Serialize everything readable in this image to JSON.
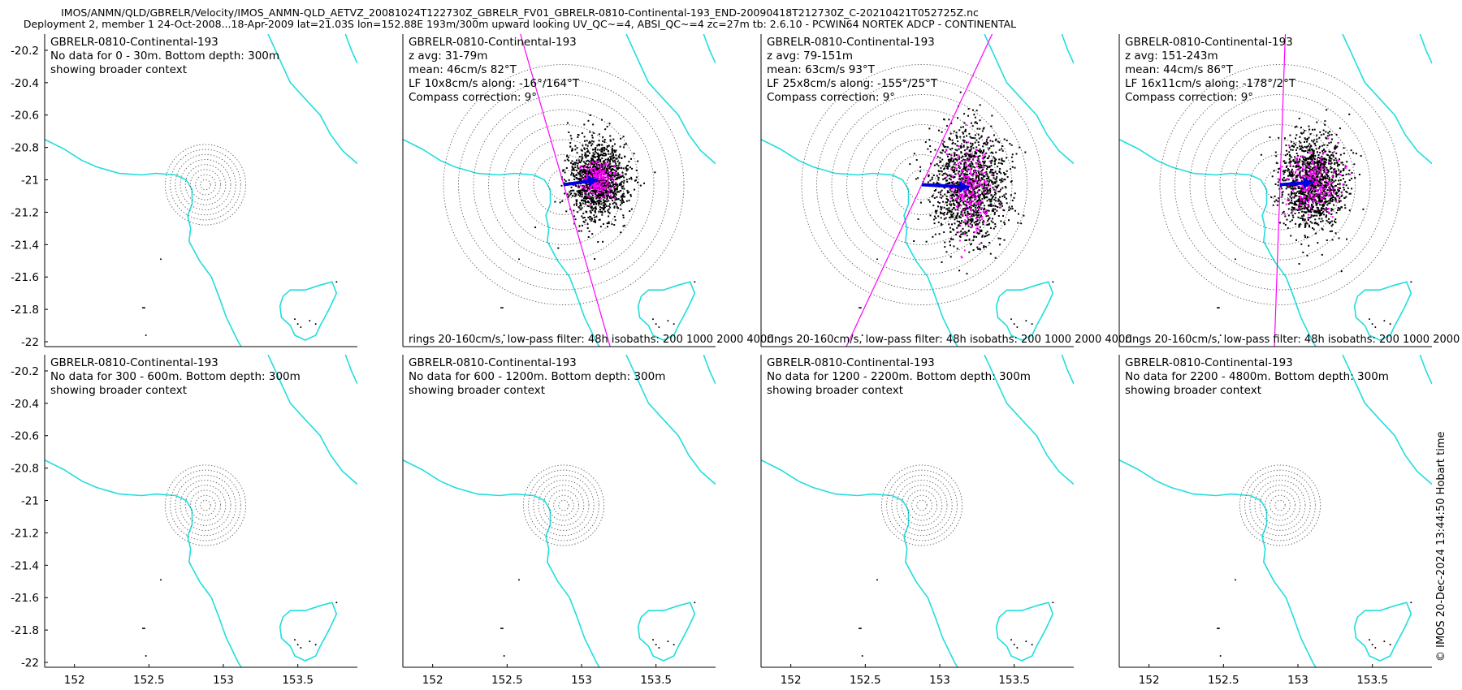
{
  "figure": {
    "title_line1": "IMOS/ANMN/QLD/GBRELR/Velocity/IMOS_ANMN-QLD_AETVZ_20081024T122730Z_GBRELR_FV01_GBRELR-0810-Continental-193_END-20090418T212730Z_C-20210421T052725Z.nc",
    "title_line2": "Deployment 2, member 1 24-Oct-2008...18-Apr-2009 lat=21.03S lon=152.88E 193m/300m upward looking UV_QC~=4, ABSI_QC~=4 zc=27m tb: 2.6.10 - PCWIN64 NORTEK ADCP - CONTINENTAL",
    "timestamp": "© IMOS 20-Dec-2024 13:44:50 Hobart time"
  },
  "colors": {
    "coast": "#22dddd",
    "arrow": "#0000dd",
    "lowpass": "#ff00ff",
    "points": "#000000",
    "rings": "#555555"
  },
  "chart_data": {
    "type": "scatter",
    "xlim": [
      151.8,
      153.9
    ],
    "ylim": [
      -22.03,
      -20.1
    ],
    "xticks": [
      152,
      152.5,
      153,
      153.5
    ],
    "xtick_labels": [
      "152",
      "152.5",
      "153",
      "153.5"
    ],
    "yticks": [
      -20.2,
      -20.4,
      -20.6,
      -20.8,
      -21,
      -21.2,
      -21.4,
      -21.6,
      -21.8,
      -22
    ],
    "ytick_labels": [
      "-20.2",
      "-20.4",
      "-20.6",
      "-20.8",
      "-21",
      "-21.2",
      "-21.4",
      "-21.6",
      "-21.8",
      "-22"
    ],
    "mooring": {
      "lon": 152.88,
      "lat": -21.03
    },
    "isobath_note": "rings 20-160cm/s, low-pass filter: 48h isobaths: 200 1000 2000 4000",
    "panels": [
      {
        "lines": [
          "GBRELR-0810-Continental-193",
          "No data for 0 - 30m. Bottom depth: 300m",
          "showing broader context"
        ],
        "has_data": false
      },
      {
        "lines": [
          "GBRELR-0810-Continental-193",
          "z avg: 31-79m",
          "mean: 46cm/s 82°T",
          "LF 10x8cm/s along: -16°/164°T",
          "Compass correction: 9°"
        ],
        "has_data": true,
        "mean_speed": 46,
        "mean_dir": 82,
        "lf_major": 10,
        "lf_minor": 8,
        "along": -16
      },
      {
        "lines": [
          "GBRELR-0810-Continental-193",
          "z avg: 79-151m",
          "mean: 63cm/s 93°T",
          "LF 25x8cm/s along: -155°/25°T",
          "Compass correction: 9°"
        ],
        "has_data": true,
        "mean_speed": 63,
        "mean_dir": 93,
        "lf_major": 25,
        "lf_minor": 8,
        "along": 25
      },
      {
        "lines": [
          "GBRELR-0810-Continental-193",
          "z avg: 151-243m",
          "mean: 44cm/s 86°T",
          "LF 16x11cm/s along: -178°/2°T",
          "Compass correction: 9°"
        ],
        "has_data": true,
        "mean_speed": 44,
        "mean_dir": 86,
        "lf_major": 16,
        "lf_minor": 11,
        "along": 2
      },
      {
        "lines": [
          "GBRELR-0810-Continental-193",
          "No data for 300 - 600m. Bottom depth: 300m",
          "showing broader context"
        ],
        "has_data": false
      },
      {
        "lines": [
          "GBRELR-0810-Continental-193",
          "No data for 600 - 1200m. Bottom depth: 300m",
          "showing broader context"
        ],
        "has_data": false
      },
      {
        "lines": [
          "GBRELR-0810-Continental-193",
          "No data for 1200 - 2200m. Bottom depth: 300m",
          "showing broader context"
        ],
        "has_data": false
      },
      {
        "lines": [
          "GBRELR-0810-Continental-193",
          "No data for 2200 - 4800m. Bottom depth: 300m",
          "showing broader context"
        ],
        "has_data": false
      }
    ],
    "coast": [
      [
        [
          151.8,
          -20.75
        ],
        [
          151.93,
          -20.81
        ],
        [
          152.05,
          -20.88
        ],
        [
          152.15,
          -20.92
        ],
        [
          152.3,
          -20.96
        ],
        [
          152.45,
          -20.97
        ],
        [
          152.55,
          -20.96
        ],
        [
          152.68,
          -20.97
        ],
        [
          152.75,
          -21.0
        ],
        [
          152.79,
          -21.06
        ],
        [
          152.79,
          -21.15
        ],
        [
          152.76,
          -21.22
        ],
        [
          152.78,
          -21.3
        ],
        [
          152.77,
          -21.38
        ],
        [
          152.84,
          -21.5
        ],
        [
          152.92,
          -21.6
        ],
        [
          152.97,
          -21.72
        ],
        [
          153.02,
          -21.85
        ],
        [
          153.1,
          -22.0
        ],
        [
          153.12,
          -22.03
        ]
      ],
      [
        [
          153.3,
          -20.1
        ],
        [
          153.35,
          -20.2
        ],
        [
          153.4,
          -20.3
        ],
        [
          153.45,
          -20.4
        ],
        [
          153.55,
          -20.5
        ],
        [
          153.65,
          -20.6
        ],
        [
          153.72,
          -20.72
        ],
        [
          153.8,
          -20.82
        ],
        [
          153.9,
          -20.9
        ]
      ],
      [
        [
          153.82,
          -20.1
        ],
        [
          153.86,
          -20.2
        ],
        [
          153.9,
          -20.28
        ]
      ],
      [
        [
          153.4,
          -21.72
        ],
        [
          153.45,
          -21.68
        ],
        [
          153.55,
          -21.68
        ],
        [
          153.65,
          -21.65
        ],
        [
          153.73,
          -21.63
        ],
        [
          153.76,
          -21.7
        ],
        [
          153.72,
          -21.78
        ],
        [
          153.68,
          -21.85
        ],
        [
          153.65,
          -21.9
        ],
        [
          153.62,
          -21.96
        ],
        [
          153.55,
          -21.99
        ],
        [
          153.48,
          -21.96
        ],
        [
          153.45,
          -21.9
        ],
        [
          153.39,
          -21.85
        ],
        [
          153.38,
          -21.78
        ],
        [
          153.4,
          -21.72
        ]
      ]
    ],
    "islands": [
      [
        152.58,
        -21.49
      ],
      [
        152.46,
        -21.79
      ],
      [
        152.47,
        -21.79
      ],
      [
        152.48,
        -21.96
      ],
      [
        153.76,
        -21.63
      ],
      [
        153.48,
        -21.86
      ],
      [
        153.5,
        -21.89
      ],
      [
        153.52,
        -21.91
      ],
      [
        153.58,
        -21.87
      ],
      [
        153.62,
        -21.89
      ]
    ]
  }
}
